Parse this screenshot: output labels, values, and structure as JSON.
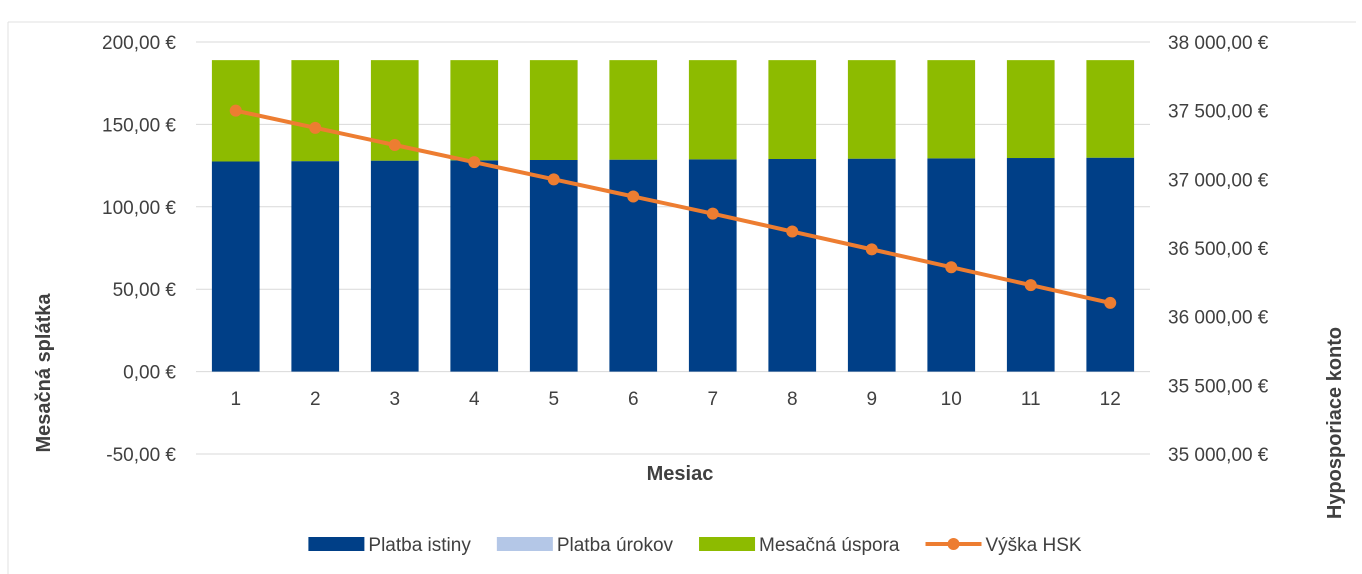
{
  "chart_data": {
    "type": "bar",
    "stacked": true,
    "categories": [
      "1",
      "2",
      "3",
      "4",
      "5",
      "6",
      "7",
      "8",
      "9",
      "10",
      "11",
      "12"
    ],
    "series": [
      {
        "name": "Platba istiny",
        "type": "bar",
        "axis": "left",
        "color": "#003F87",
        "values": [
          127.5,
          127.7,
          128.0,
          128.2,
          128.4,
          128.6,
          128.8,
          129.0,
          129.2,
          129.4,
          129.6,
          129.8
        ]
      },
      {
        "name": "Platba úrokov",
        "type": "bar",
        "axis": "left",
        "color": "#B4C7E7",
        "values": [
          0,
          0,
          0,
          0,
          0,
          0,
          0,
          0,
          0,
          0,
          0,
          0
        ]
      },
      {
        "name": "Mesačná úspora",
        "type": "bar",
        "axis": "left",
        "color": "#8DBB00",
        "values": [
          61.5,
          61.3,
          61.0,
          60.8,
          60.6,
          60.4,
          60.2,
          60.0,
          59.8,
          59.6,
          59.4,
          59.2
        ]
      },
      {
        "name": "Výška HSK",
        "type": "line",
        "axis": "right",
        "color": "#ED7D31",
        "values": [
          37500,
          37375,
          37250,
          37125,
          37000,
          36875,
          36750,
          36620,
          36490,
          36360,
          36230,
          36100
        ]
      }
    ],
    "xlabel": "Mesiac",
    "ylabel": "Mesačná splátka",
    "y2label": "Hyposporiace konto",
    "ylim": [
      -50,
      200
    ],
    "y2lim": [
      35000,
      38000
    ],
    "yticks": [
      "200,00 €",
      "150,00 €",
      "100,00 €",
      "50,00 €",
      "0,00 €",
      "-50,00 €"
    ],
    "ytick_values": [
      200,
      150,
      100,
      50,
      0,
      -50
    ],
    "y2ticks": [
      "38 000,00 €",
      "37 500,00 €",
      "37 000,00 €",
      "36 500,00 €",
      "36 000,00 €",
      "35 500,00 €",
      "35 000,00 €"
    ],
    "y2tick_values": [
      38000,
      37500,
      37000,
      36500,
      36000,
      35500,
      35000
    ],
    "grid": true,
    "legend_position": "bottom"
  }
}
